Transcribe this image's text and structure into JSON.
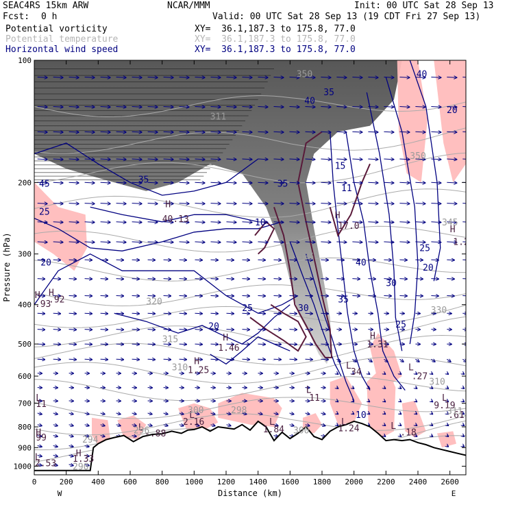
{
  "header": {
    "model": "SEAC4RS 15km ARW",
    "org": "NCAR/MMM",
    "init": "Init: 00 UTC Sat 28 Sep 13",
    "fcst_label": "Fcst:",
    "fcst_value": "0 h",
    "valid": "Valid: 00 UTC Sat 28 Sep 13 (19 CDT Fri 27 Sep 13)",
    "fields": [
      {
        "label": "Potential vorticity",
        "xy": "XY=  36.1,187.3 to 175.8, 77.0",
        "color": "#000000"
      },
      {
        "label": "Potential temperature",
        "xy": "XY=  36.1,187.3 to 175.8, 77.0",
        "color": "#b4b4b4"
      },
      {
        "label": "Horizontal wind speed",
        "xy": "XY=  36.1,187.3 to 175.8, 77.0",
        "color": "#000080"
      }
    ]
  },
  "chart_data": {
    "type": "cross-section",
    "xlabel": "Distance (km)",
    "ylabel": "Pressure (hPa)",
    "x_range": [
      0,
      2700
    ],
    "y_range": [
      1050,
      100
    ],
    "y_scale": "log",
    "x_ticks": [
      0,
      200,
      400,
      600,
      800,
      1000,
      1200,
      1400,
      1600,
      1800,
      2000,
      2200,
      2400,
      2600
    ],
    "y_ticks": [
      100,
      200,
      300,
      400,
      500,
      600,
      700,
      800,
      900,
      1000
    ],
    "x_end_labels": {
      "left": "W",
      "right": "E"
    },
    "terrain": {
      "distance_km": [
        0,
        350,
        370,
        400,
        450,
        500,
        560,
        620,
        680,
        740,
        800,
        860,
        920,
        960,
        1000,
        1050,
        1100,
        1150,
        1200,
        1250,
        1300,
        1350,
        1400,
        1450,
        1500,
        1550,
        1600,
        1650,
        1700,
        1750,
        1800,
        1850,
        1900,
        1950,
        2000,
        2050,
        2100,
        2150,
        2200,
        2250,
        2300,
        2350,
        2400,
        2450,
        2500,
        2550,
        2600,
        2650,
        2700
      ],
      "pressure_hpa": [
        1025,
        1025,
        900,
        880,
        860,
        850,
        840,
        870,
        845,
        835,
        832,
        820,
        830,
        815,
        812,
        800,
        820,
        800,
        805,
        810,
        790,
        815,
        775,
        800,
        865,
        825,
        855,
        830,
        800,
        845,
        860,
        820,
        800,
        790,
        775,
        785,
        800,
        830,
        865,
        860,
        865,
        860,
        875,
        885,
        900,
        910,
        920,
        930,
        940
      ]
    },
    "pv_labels": [
      {
        "text": "H",
        "x": 90,
        "p": 380
      },
      {
        "text": ".92",
        "x": 90,
        "p": 395
      },
      {
        "text": "H",
        "x": 4,
        "p": 385
      },
      {
        "text": ".93",
        "x": 4,
        "p": 405
      },
      {
        "text": "H",
        "x": 1180,
        "p": 490
      },
      {
        "text": "1.46",
        "x": 1150,
        "p": 520
      },
      {
        "text": "H",
        "x": 1000,
        "p": 560
      },
      {
        "text": "1.25",
        "x": 960,
        "p": 590
      },
      {
        "text": "L",
        "x": 970,
        "p": 760
      },
      {
        "text": "2.16",
        "x": 930,
        "p": 790
      },
      {
        "text": "L",
        "x": 1470,
        "p": 790
      },
      {
        "text": "1.84",
        "x": 1430,
        "p": 825
      },
      {
        "text": "L",
        "x": 1700,
        "p": 660
      },
      {
        "text": "11",
        "x": 1720,
        "p": 690
      },
      {
        "text": "L",
        "x": 1920,
        "p": 790
      },
      {
        "text": "1.24",
        "x": 1900,
        "p": 820
      },
      {
        "text": "H",
        "x": 2100,
        "p": 485
      },
      {
        "text": "1.31",
        "x": 2080,
        "p": 510
      },
      {
        "text": "L",
        "x": 2340,
        "p": 580
      },
      {
        "text": ".27",
        "x": 2360,
        "p": 610
      },
      {
        "text": "L",
        "x": 2230,
        "p": 810
      },
      {
        "text": ".18",
        "x": 2290,
        "p": 840
      },
      {
        "text": "L",
        "x": 2550,
        "p": 690
      },
      {
        "text": "9.19",
        "x": 2500,
        "p": 720
      },
      {
        "text": ".61",
        "x": 2590,
        "p": 760
      },
      {
        "text": "H",
        "x": 2600,
        "p": 265
      },
      {
        "text": "1.2",
        "x": 2620,
        "p": 285
      },
      {
        "text": "L",
        "x": 10,
        "p": 690
      },
      {
        "text": "11",
        "x": 10,
        "p": 715
      },
      {
        "text": "H",
        "x": 10,
        "p": 840
      },
      {
        "text": "99",
        "x": 10,
        "p": 865
      },
      {
        "text": "H",
        "x": 260,
        "p": 945
      },
      {
        "text": "1.33",
        "x": 240,
        "p": 975
      },
      {
        "text": "L",
        "x": 4,
        "p": 965
      },
      {
        "text": "2.53",
        "x": 4,
        "p": 1000
      },
      {
        "text": "L",
        "x": 650,
        "p": 815
      },
      {
        "text": "-.88",
        "x": 690,
        "p": 845
      },
      {
        "text": "H",
        "x": 820,
        "p": 230
      },
      {
        "text": "40.13",
        "x": 800,
        "p": 250
      },
      {
        "text": "H",
        "x": 1880,
        "p": 245
      },
      {
        "text": "17.0",
        "x": 1900,
        "p": 260
      },
      {
        "text": "L",
        "x": 1950,
        "p": 575
      },
      {
        "text": "34",
        "x": 1980,
        "p": 595
      }
    ],
    "theta_labels": [
      {
        "text": "315",
        "x": 800,
        "p": 495
      },
      {
        "text": "310",
        "x": 860,
        "p": 580
      },
      {
        "text": "320",
        "x": 700,
        "p": 400
      },
      {
        "text": "300",
        "x": 960,
        "p": 740
      },
      {
        "text": "298",
        "x": 1230,
        "p": 740
      },
      {
        "text": "296",
        "x": 620,
        "p": 830
      },
      {
        "text": "294",
        "x": 300,
        "p": 875
      },
      {
        "text": "290",
        "x": 240,
        "p": 1020
      },
      {
        "text": "330",
        "x": 2480,
        "p": 420
      },
      {
        "text": "335",
        "x": 1650,
        "p": 310
      },
      {
        "text": "345",
        "x": 2550,
        "p": 255
      },
      {
        "text": "350",
        "x": 2350,
        "p": 175
      },
      {
        "text": "311",
        "x": 2580,
        "p": 745
      },
      {
        "text": "300",
        "x": 1620,
        "p": 830
      },
      {
        "text": "310",
        "x": 2470,
        "p": 630
      },
      {
        "text": "311",
        "x": 1100,
        "p": 140
      },
      {
        "text": "350",
        "x": 1640,
        "p": 110
      }
    ],
    "wind_labels": [
      {
        "text": "45",
        "x": 30,
        "p": 205
      },
      {
        "text": "25",
        "x": 30,
        "p": 240
      },
      {
        "text": "20",
        "x": 40,
        "p": 320
      },
      {
        "text": "25",
        "x": 1300,
        "p": 415
      },
      {
        "text": "20",
        "x": 1090,
        "p": 460
      },
      {
        "text": "30",
        "x": 1650,
        "p": 415
      },
      {
        "text": "35",
        "x": 1900,
        "p": 395
      },
      {
        "text": "40",
        "x": 2010,
        "p": 320
      },
      {
        "text": "25",
        "x": 2410,
        "p": 295
      },
      {
        "text": "20",
        "x": 2430,
        "p": 330
      },
      {
        "text": "25",
        "x": 2260,
        "p": 455
      },
      {
        "text": "30",
        "x": 2200,
        "p": 360
      },
      {
        "text": "15",
        "x": 1880,
        "p": 185
      },
      {
        "text": "11",
        "x": 1920,
        "p": 210
      },
      {
        "text": "10",
        "x": 1380,
        "p": 255
      },
      {
        "text": "35",
        "x": 1520,
        "p": 205
      },
      {
        "text": "40",
        "x": 1690,
        "p": 128
      },
      {
        "text": "20",
        "x": 2580,
        "p": 135
      },
      {
        "text": "35",
        "x": 1810,
        "p": 122
      },
      {
        "text": "40",
        "x": 2390,
        "p": 110
      },
      {
        "text": "10",
        "x": 2010,
        "p": 760
      },
      {
        "text": "35",
        "x": 650,
        "p": 200
      }
    ],
    "pv_shading_levels": [
      1.5,
      2,
      3,
      4,
      6,
      8,
      10
    ],
    "humidity_shading_color": "#ffc0c0"
  },
  "colors": {
    "pv": "#5a1a3a",
    "theta": "#aaaaaa",
    "wind": "#000080",
    "terrain": "#000000",
    "pink": "#ffbcbc"
  }
}
